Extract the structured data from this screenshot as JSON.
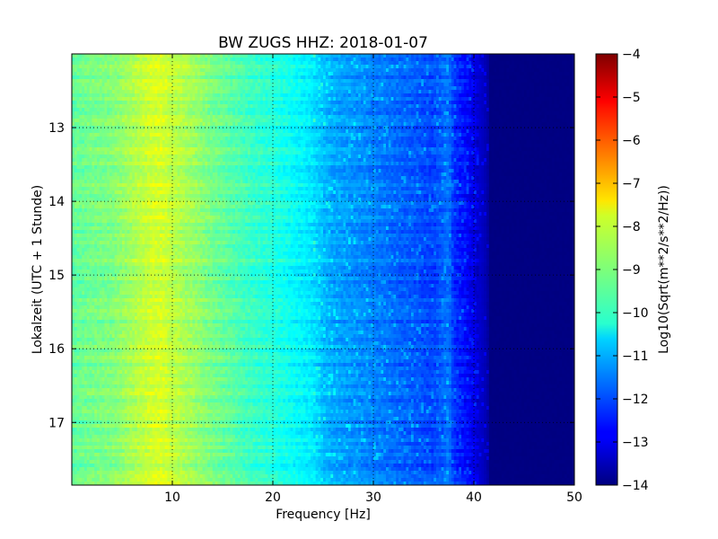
{
  "chart_data": {
    "type": "heatmap",
    "title": "BW ZUGS HHZ: 2018-01-07",
    "xlabel": "Frequency [Hz]",
    "ylabel": "Lokalzeit (UTC + 1 Stunde)",
    "xlim": [
      0,
      50
    ],
    "ylim": [
      12.0,
      17.85
    ],
    "y_inverted": true,
    "xticks": [
      10,
      20,
      30,
      40,
      50
    ],
    "yticks": [
      13,
      14,
      15,
      16,
      17
    ],
    "grid": true,
    "colorbar": {
      "label": "Log10(Sqrt(m**2/s**2/Hz))",
      "colormap": "jet",
      "vmin": -14,
      "vmax": -4,
      "ticks": [
        -4,
        -5,
        -6,
        -7,
        -8,
        -9,
        -10,
        -11,
        -12,
        -13,
        -14
      ]
    },
    "frequency_profile_hz": [
      0,
      2,
      4,
      6,
      8,
      9,
      10,
      12,
      14,
      16,
      18,
      20,
      22,
      24,
      25,
      26,
      28,
      30,
      32,
      34,
      36,
      37.5,
      38,
      39,
      40,
      41,
      42,
      45,
      50
    ],
    "frequency_profile_level": [
      -9.3,
      -9.1,
      -9.0,
      -8.6,
      -8.2,
      -8.15,
      -8.4,
      -8.7,
      -9.1,
      -9.4,
      -9.7,
      -9.9,
      -10.2,
      -10.5,
      -10.9,
      -11.1,
      -11.3,
      -11.5,
      -11.7,
      -11.9,
      -12.1,
      -11.6,
      -12.3,
      -12.6,
      -13.0,
      -13.4,
      -14.0,
      -14.0,
      -14.0
    ]
  }
}
